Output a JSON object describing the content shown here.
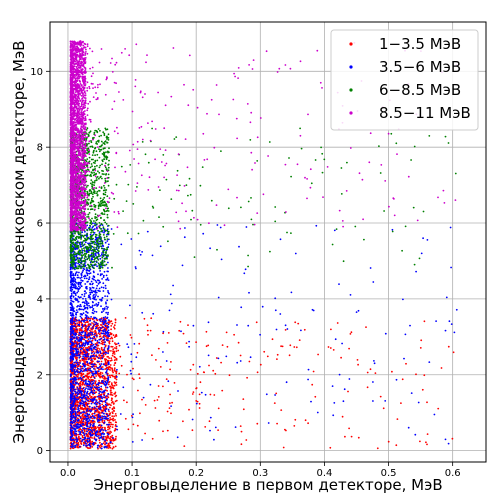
{
  "chart_data": {
    "type": "scatter",
    "xlabel": "Энерговыделение в первом детекторе, МэВ",
    "ylabel": "Энерговыделение в черенковском детекторе, МэВ",
    "xlim": [
      -0.028,
      0.652
    ],
    "ylim": [
      -0.3,
      11.3
    ],
    "xticks": [
      0.0,
      0.1,
      0.2,
      0.3,
      0.4,
      0.5,
      0.6
    ],
    "yticks": [
      0,
      2,
      4,
      6,
      8,
      10
    ],
    "xtick_labels": [
      "0.0",
      "0.1",
      "0.2",
      "0.3",
      "0.4",
      "0.5",
      "0.6"
    ],
    "ytick_labels": [
      "0",
      "2",
      "4",
      "6",
      "8",
      "10"
    ],
    "grid": true,
    "legend_position": "top-right",
    "series": [
      {
        "name": "1−3.5 МэВ",
        "color": "#ff0000",
        "y_range": [
          0.05,
          3.5
        ],
        "x_median": 0.03,
        "count": 2200,
        "tail_fraction": 0.12
      },
      {
        "name": "3.5−6 МэВ",
        "color": "#0000ff",
        "y_range": [
          0.05,
          6.0
        ],
        "x_median": 0.025,
        "count": 2000,
        "tail_fraction": 0.1
      },
      {
        "name": "6−8.5 МэВ",
        "color": "#008000",
        "y_range": [
          4.8,
          8.5
        ],
        "x_median": 0.025,
        "count": 1400,
        "tail_fraction": 0.1
      },
      {
        "name": "8.5−11 МэВ",
        "color": "#cc00cc",
        "y_range": [
          5.8,
          10.8
        ],
        "x_median": 0.01,
        "count": 2600,
        "tail_fraction": 0.1
      }
    ]
  }
}
